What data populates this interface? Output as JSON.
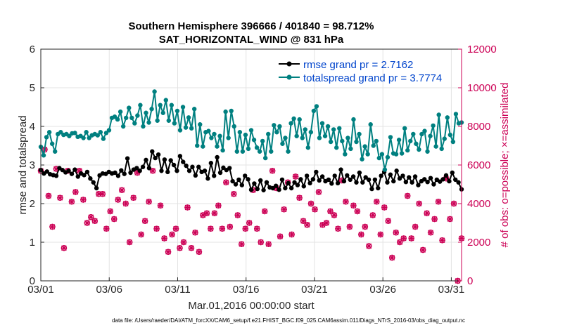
{
  "chart_data": {
    "type": "line",
    "title": "Southern Hemisphere 396666 / 401840 = 98.712%",
    "subtitle": "SAT_HORIZONTAL_WIND @ 831 hPa",
    "xlabel": "Mar.01,2016 00:00:00 start",
    "ylabel": "rmse and totalspread",
    "ylabel_right": "# of obs: o=possible; ×=assimilated",
    "x_ticks": [
      "03/01",
      "03/06",
      "03/11",
      "03/16",
      "03/21",
      "03/26",
      "03/31"
    ],
    "x_tick_days": [
      1,
      6,
      11,
      16,
      21,
      26,
      31
    ],
    "xlim_days": [
      1,
      31.75
    ],
    "ylim": [
      0,
      6
    ],
    "y_ticks": [
      "0",
      "1",
      "2",
      "3",
      "4",
      "5",
      "6"
    ],
    "y2lim": [
      0,
      12000
    ],
    "y2_ticks": [
      "0",
      "2000",
      "4000",
      "6000",
      "8000",
      "10000",
      "12000"
    ],
    "grid": true,
    "legend_position": "top-right",
    "footer": "data file: /Users/raeder/DAI/ATM_forcXX/CAM6_setup/f.e21.FHIST_BGC.f09_025.CAM6assim.011/Diags_NTrS_2016-03/obs_diag_output.nc",
    "colors": {
      "rmse": "#000000",
      "spread": "#008080",
      "obs": "#cc0055"
    },
    "series": [
      {
        "name": "rmse grand pr = 2.7162",
        "color": "#000000",
        "axis": "left",
        "values": [
          2.87,
          2.78,
          2.83,
          2.76,
          2.74,
          2.72,
          2.92,
          2.87,
          2.81,
          2.85,
          2.77,
          2.88,
          2.7,
          2.78,
          2.74,
          2.82,
          2.65,
          2.55,
          2.4,
          2.73,
          2.78,
          2.77,
          2.82,
          2.78,
          2.8,
          2.72,
          2.86,
          2.77,
          3.17,
          2.8,
          2.88,
          2.92,
          2.85,
          2.95,
          3.13,
          2.92,
          3.35,
          3.18,
          3.27,
          2.85,
          3.14,
          2.82,
          3.12,
          3.0,
          2.85,
          3.23,
          3.08,
          2.98,
          2.85,
          2.95,
          2.73,
          2.95,
          2.82,
          2.85,
          2.65,
          3.05,
          2.72,
          3.2,
          2.8,
          2.93,
          2.87,
          2.92,
          2.58,
          2.5,
          2.62,
          2.48,
          2.72,
          2.63,
          2.36,
          2.52,
          2.38,
          2.6,
          2.35,
          2.55,
          2.42,
          2.4,
          2.46,
          2.36,
          2.62,
          2.4,
          2.53,
          2.4,
          2.55,
          2.48,
          2.63,
          2.45,
          2.72,
          2.53,
          2.63,
          2.82,
          2.6,
          2.7,
          2.58,
          2.62,
          2.52,
          2.72,
          2.53,
          2.88,
          2.58,
          2.73,
          2.62,
          2.7,
          2.55,
          2.8,
          2.55,
          2.68,
          2.62,
          2.38,
          2.62,
          2.4,
          2.72,
          2.82,
          2.55,
          2.75,
          2.58,
          2.85,
          2.65,
          2.72,
          2.56,
          2.68,
          2.55,
          2.7,
          2.48,
          2.58,
          2.63,
          2.56,
          2.66,
          2.5,
          2.62,
          2.57,
          2.63,
          2.73,
          2.58,
          2.8,
          2.62,
          2.55,
          2.37
        ]
      },
      {
        "name": "totalspread grand pr = 3.7774",
        "color": "#008080",
        "axis": "left",
        "values": [
          3.47,
          3.25,
          3.72,
          3.85,
          3.55,
          3.35,
          3.8,
          3.85,
          3.78,
          3.8,
          3.75,
          3.82,
          3.83,
          3.73,
          3.75,
          3.7,
          3.85,
          3.7,
          3.77,
          3.8,
          3.77,
          3.85,
          3.68,
          3.83,
          3.9,
          4.22,
          4.25,
          4.18,
          4.38,
          4.0,
          4.22,
          4.48,
          4.22,
          4.08,
          4.28,
          4.55,
          4.0,
          4.35,
          4.1,
          4.45,
          4.9,
          4.15,
          4.55,
          4.35,
          4.68,
          4.15,
          4.55,
          4.08,
          4.4,
          3.9,
          4.5,
          3.97,
          4.23,
          3.95,
          4.45,
          3.5,
          4.05,
          3.48,
          3.85,
          3.88,
          3.7,
          3.8,
          3.48,
          3.75,
          3.38,
          4.38,
          3.7,
          4.4,
          4.0,
          3.35,
          3.85,
          3.35,
          3.78,
          3.42,
          3.9,
          3.65,
          3.45,
          3.35,
          3.62,
          3.18,
          3.8,
          3.35,
          4.03,
          3.85,
          4.0,
          3.55,
          3.7,
          3.35,
          4.08,
          4.2,
          3.75,
          4.18,
          3.7,
          3.92,
          3.45,
          3.85,
          4.4,
          4.52,
          3.7,
          4.08,
          3.75,
          4.0,
          3.6,
          3.92,
          3.45,
          3.95,
          3.62,
          3.28,
          3.7,
          3.42,
          4.18,
          3.6,
          3.8,
          3.15,
          3.48,
          3.28,
          4.05,
          3.5,
          3.62,
          3.18,
          3.28,
          2.88,
          3.2,
          3.72,
          3.3,
          3.28,
          3.65,
          3.3,
          3.95,
          3.38,
          3.62,
          3.8,
          3.55,
          3.4,
          3.8,
          3.88,
          3.35,
          3.75,
          4.02,
          3.48,
          4.3,
          3.42,
          3.68,
          4.23,
          3.78,
          3.6,
          4.32,
          4.08,
          4.1
        ]
      },
      {
        "name": "possible obs",
        "color": "#cc0055",
        "axis": "right",
        "marker": "o",
        "values": [
          5700,
          6800,
          4400,
          2800,
          5800,
          4300,
          1700,
          5700,
          4100,
          4600,
          5700,
          4200,
          3000,
          3300,
          3100,
          4500,
          4500,
          2700,
          3600,
          3200,
          4200,
          4700,
          4000,
          2000,
          4300,
          5600,
          2400,
          3100,
          4100,
          5700,
          2700,
          3900,
          2200,
          1500,
          2400,
          2700,
          1700,
          2000,
          3800,
          1700,
          2500,
          1500,
          3400,
          3500,
          2700,
          3500,
          3900,
          2700,
          5100,
          2800,
          4500,
          3400,
          1900,
          2700,
          3000,
          4700,
          2700,
          2000,
          3600,
          1900,
          5700,
          4800,
          2300,
          3700,
          5100,
          2400,
          5400,
          4300,
          3100,
          2900,
          4000,
          3700,
          4600,
          2900,
          3000,
          3600,
          3400,
          2700,
          5200,
          4100,
          2800,
          3900,
          3600,
          2400,
          2800,
          1800,
          3400,
          4100,
          2400,
          3800,
          3100,
          1200,
          2500,
          2000,
          2200,
          4400,
          2200,
          2800,
          4000,
          1600,
          3500,
          2500,
          3200,
          4100,
          2100,
          5300,
          3200,
          4000,
          0,
          2200
        ]
      },
      {
        "name": "assimilated obs",
        "color": "#cc0055",
        "axis": "right",
        "marker": "x",
        "values": [
          5700,
          6800,
          4400,
          2800,
          5800,
          4300,
          1700,
          5700,
          4100,
          4600,
          5700,
          4200,
          3000,
          3300,
          3100,
          4500,
          4500,
          2700,
          3600,
          3200,
          4200,
          4700,
          4000,
          2000,
          4300,
          5600,
          2400,
          3100,
          4100,
          5700,
          2700,
          3900,
          2200,
          1500,
          2400,
          2700,
          1700,
          2000,
          3800,
          1700,
          2500,
          1500,
          3400,
          3500,
          2700,
          3500,
          3900,
          2700,
          5100,
          2800,
          4500,
          3400,
          1900,
          2700,
          3000,
          4700,
          2700,
          2000,
          3600,
          1900,
          5700,
          4800,
          2300,
          3700,
          5100,
          2400,
          5400,
          4300,
          3100,
          2900,
          4000,
          3700,
          4600,
          2900,
          3000,
          3600,
          3400,
          2700,
          5200,
          4100,
          2800,
          3900,
          3600,
          2400,
          2800,
          1800,
          3400,
          4100,
          2400,
          3800,
          3100,
          1200,
          2500,
          2000,
          2200,
          4400,
          2200,
          2800,
          4000,
          1600,
          3500,
          2500,
          3200,
          4100,
          2100,
          5300,
          3200,
          4000,
          0,
          2200
        ]
      }
    ]
  }
}
